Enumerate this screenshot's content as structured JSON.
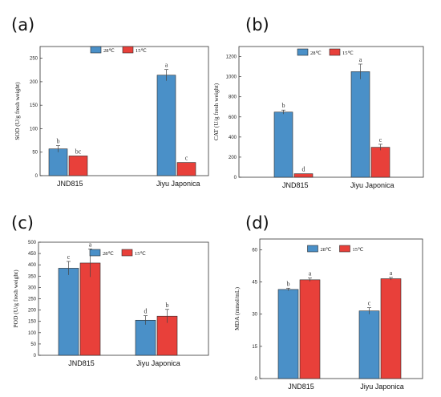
{
  "chart_data": [
    {
      "panel": "(a)",
      "type": "bar",
      "categories": [
        "JND815",
        "Jiyu Japonica"
      ],
      "series": [
        {
          "name": "28℃",
          "values": [
            57,
            214
          ],
          "errors": [
            7,
            12
          ],
          "letters": [
            "b",
            "a"
          ]
        },
        {
          "name": "15℃",
          "values": [
            42,
            28
          ],
          "errors": [
            0,
            0
          ],
          "letters": [
            "bc",
            "c"
          ]
        }
      ],
      "ylabel": "SOD (U/g fresh weight)",
      "ylim": [
        0,
        275
      ],
      "yticks": [
        0,
        50,
        100,
        150,
        200,
        250
      ],
      "ytick_labels": [
        "0",
        "50",
        "100",
        "150",
        "200",
        "250"
      ],
      "legend": "top-center"
    },
    {
      "panel": "(b)",
      "type": "bar",
      "categories": [
        "JND815",
        "Jiyu Japonica"
      ],
      "series": [
        {
          "name": "28℃",
          "values": [
            648,
            1050
          ],
          "errors": [
            20,
            75
          ],
          "letters": [
            "b",
            "a"
          ]
        },
        {
          "name": "15℃",
          "values": [
            35,
            298
          ],
          "errors": [
            0,
            30
          ],
          "letters": [
            "d",
            "c"
          ]
        }
      ],
      "ylabel": "CAT (U/g fresh weight)",
      "ylim": [
        0,
        1300
      ],
      "yticks": [
        0,
        200,
        400,
        600,
        800,
        1000,
        1200
      ],
      "ytick_labels": [
        "0",
        "200",
        "400",
        "600",
        "800",
        "1000",
        "1200"
      ],
      "legend": "top-center"
    },
    {
      "panel": "(c)",
      "type": "bar",
      "categories": [
        "JND815",
        "Jiyu Japonica"
      ],
      "series": [
        {
          "name": "28℃",
          "values": [
            385,
            155
          ],
          "errors": [
            30,
            20
          ],
          "letters": [
            "c",
            "d"
          ]
        },
        {
          "name": "15℃",
          "values": [
            408,
            173
          ],
          "errors": [
            62,
            30
          ],
          "letters": [
            "a",
            "b"
          ]
        }
      ],
      "ylabel": "POD (U/g fresh weight)",
      "ylim": [
        0,
        500
      ],
      "yticks": [
        0,
        50,
        100,
        150,
        200,
        250,
        300,
        350,
        400,
        450,
        500
      ],
      "ytick_labels": [
        "0",
        "50",
        "100",
        "150",
        "200",
        "250",
        "300",
        "350",
        "400",
        "450",
        "500"
      ],
      "legend": "top-center"
    },
    {
      "panel": "(d)",
      "type": "bar",
      "categories": [
        "JND815",
        "Jiyu Japonica"
      ],
      "series": [
        {
          "name": "28℃",
          "values": [
            41.5,
            31.5
          ],
          "errors": [
            0.6,
            1.5
          ],
          "letters": [
            "b",
            "c"
          ]
        },
        {
          "name": "15℃",
          "values": [
            46,
            46.5
          ],
          "errors": [
            0.8,
            0.6
          ],
          "letters": [
            "a",
            "a"
          ]
        }
      ],
      "ylabel": "MDA (mmol/mL)",
      "ylim": [
        0,
        65
      ],
      "yticks": [
        0,
        15,
        30,
        45,
        60
      ],
      "ytick_labels": [
        "0",
        "15",
        "30",
        "45",
        "60"
      ],
      "legend": "top-center"
    }
  ],
  "colors": {
    "series_28": "#4a90c8",
    "series_15": "#e8403a",
    "axis": "#333333"
  }
}
